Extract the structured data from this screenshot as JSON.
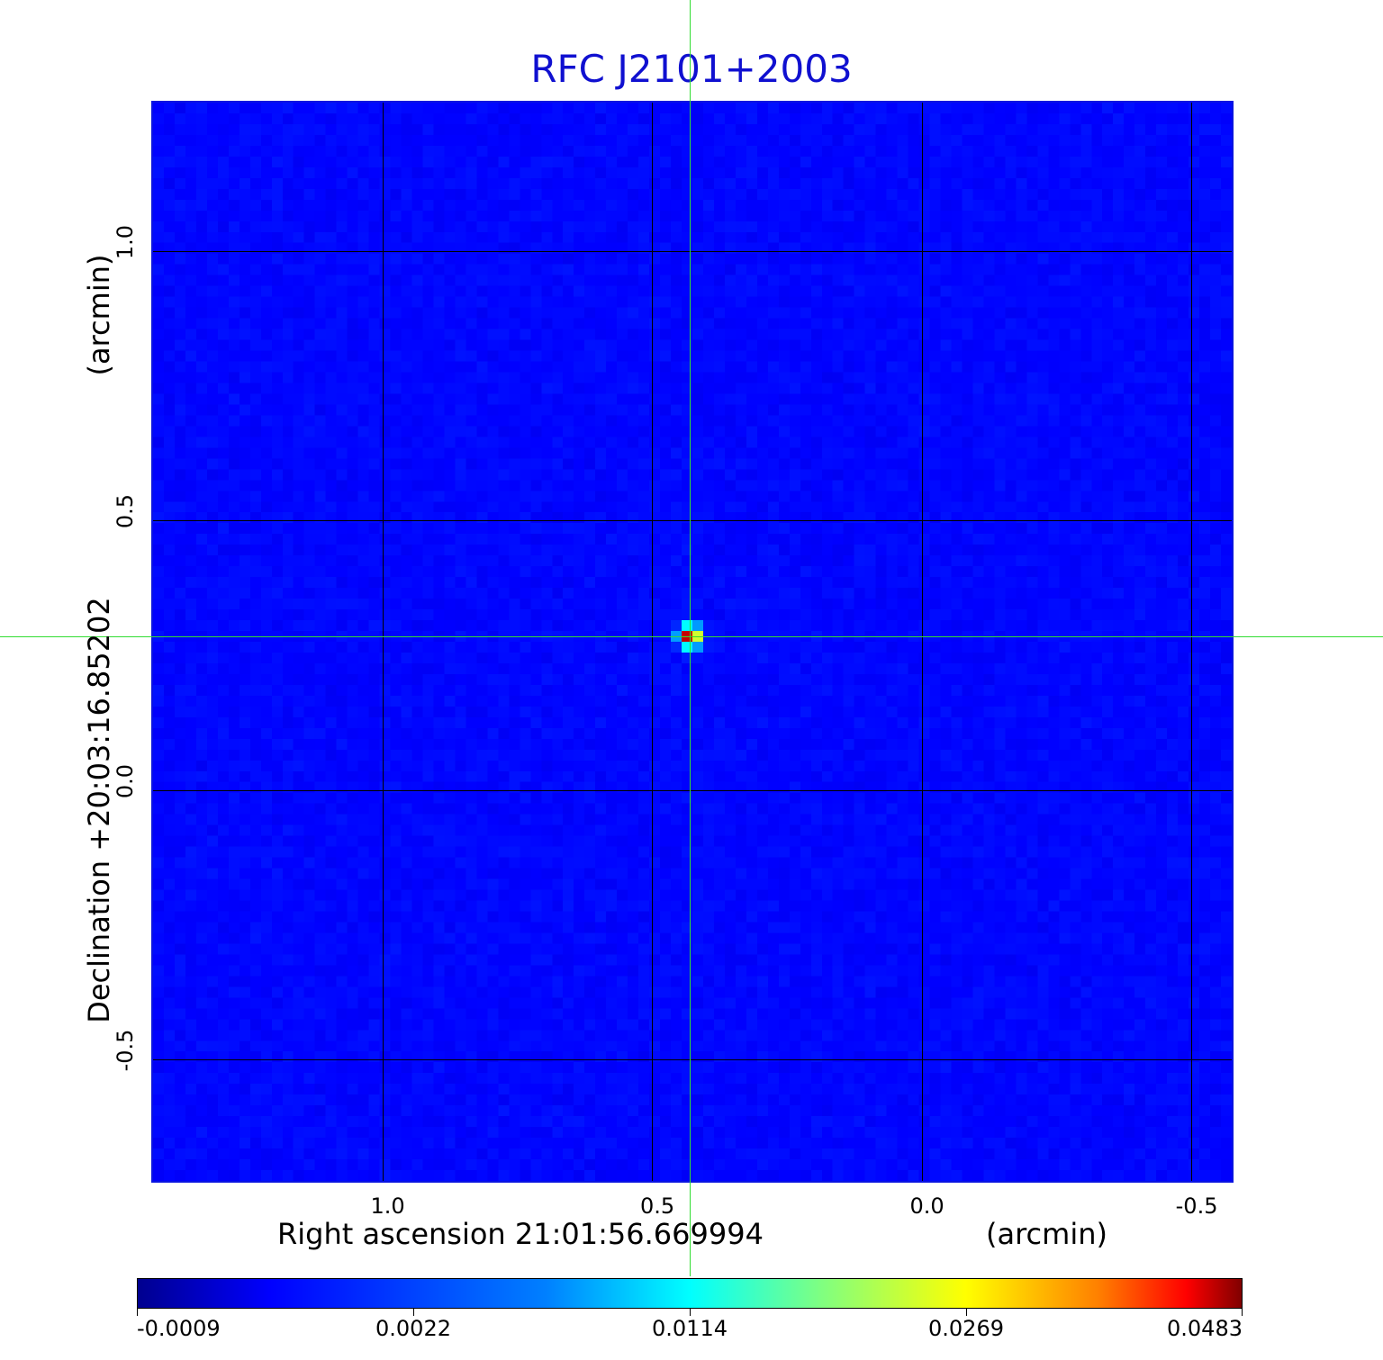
{
  "chart_data": {
    "type": "heatmap",
    "title": "RFC J2101+2003",
    "xlabel": "Right ascension  21:01:56.669994",
    "xunit": "(arcmin)",
    "ylabel": "Declination  +20:03:16.85202",
    "yunit": "(arcmin)",
    "x_ticks": [
      "1.0",
      "0.5",
      "0.0",
      "-0.5"
    ],
    "x_tick_values": [
      1.0,
      0.5,
      0.0,
      -0.5
    ],
    "y_ticks": [
      "1.0",
      "0.5",
      "0.0",
      "-0.5"
    ],
    "y_tick_values": [
      1.0,
      0.5,
      0.0,
      -0.5
    ],
    "xlim": [
      1.425,
      -0.575
    ],
    "ylim": [
      -0.725,
      1.275
    ],
    "grid": true,
    "colormap": "jet",
    "colorbar_ticks": [
      "-0.0009",
      "0.0022",
      "0.0114",
      "0.0269",
      "0.0483"
    ],
    "colorbar_range": [
      -0.0009,
      0.0483
    ],
    "source": {
      "x_arcmin": 0.43,
      "y_arcmin": 0.285,
      "peak": 0.0483
    },
    "crosshair": {
      "x_arcmin": 0.43,
      "y_arcmin": 0.285
    },
    "background_level": -0.0004
  },
  "colors": {
    "title": "#1010d0",
    "frame": "#0a14e0",
    "crosshair": "#33dd33",
    "grid": "#000000"
  }
}
